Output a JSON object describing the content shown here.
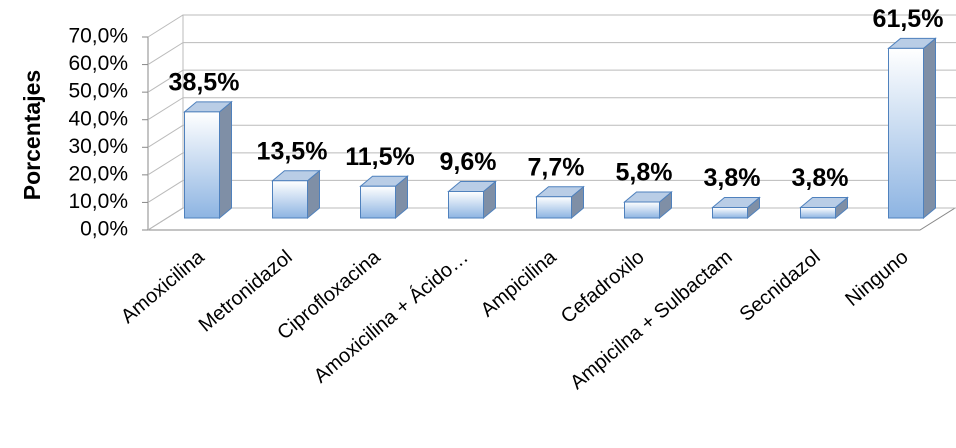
{
  "chart_data": {
    "type": "bar3d",
    "y_label": "Porcentajes",
    "categories": [
      "Amoxicilina",
      "Metronidazol",
      "Ciprofloxacina",
      "Amoxicilina + Ácido…",
      "Ampicilina",
      "Cefadroxilo",
      "Ampicilna + Sulbactam",
      "Secnidazol",
      "Ninguno"
    ],
    "values": [
      38.5,
      13.5,
      11.5,
      9.6,
      7.7,
      5.8,
      3.8,
      3.8,
      61.5
    ],
    "value_labels": [
      "38,5%",
      "13,5%",
      "11,5%",
      "9,6%",
      "7,7%",
      "5,8%",
      "3,8%",
      "3,8%",
      "61,5%"
    ],
    "color": "#8db4e2",
    "ylim": [
      0,
      70
    ],
    "yticks": [
      {
        "value": 0,
        "label": "0,0%"
      },
      {
        "value": 10,
        "label": "10,0%"
      },
      {
        "value": 20,
        "label": "20,0%"
      },
      {
        "value": 30,
        "label": "30,0%"
      },
      {
        "value": 40,
        "label": "40,0%"
      },
      {
        "value": 50,
        "label": "50,0%"
      },
      {
        "value": 60,
        "label": "60,0%"
      },
      {
        "value": 70,
        "label": "70,0%"
      }
    ],
    "grid": true
  }
}
